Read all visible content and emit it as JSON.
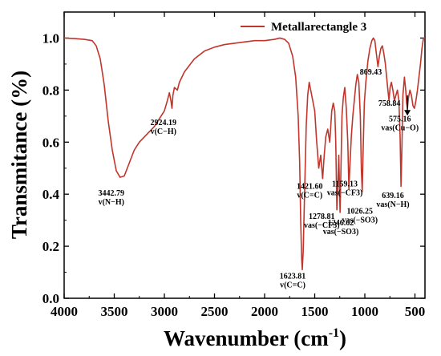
{
  "chart_data": {
    "type": "line",
    "title": "",
    "xlabel": "Wavenumber (cm",
    "xlabel_sup": "-1",
    "xlabel_tail": ")",
    "ylabel": "Transmitance (%)",
    "xlim": [
      4000,
      400
    ],
    "x_reversed": true,
    "ylim": [
      0.0,
      1.1
    ],
    "x_ticks": [
      {
        "value": 4000,
        "label": "4000"
      },
      {
        "value": 3500,
        "label": "3500"
      },
      {
        "value": 3000,
        "label": "3000"
      },
      {
        "value": 2500,
        "label": "2500"
      },
      {
        "value": 2000,
        "label": "2000"
      },
      {
        "value": 1500,
        "label": "1500"
      },
      {
        "value": 1000,
        "label": "1000"
      },
      {
        "value": 500,
        "label": "500"
      }
    ],
    "y_ticks": [
      {
        "value": 0.0,
        "label": "0.0"
      },
      {
        "value": 0.2,
        "label": "0.2"
      },
      {
        "value": 0.4,
        "label": "0.4"
      },
      {
        "value": 0.6,
        "label": "0.6"
      },
      {
        "value": 0.8,
        "label": "0.8"
      },
      {
        "value": 1.0,
        "label": "1.0"
      }
    ],
    "grid": false,
    "legend_position": "top-right",
    "series": [
      {
        "name": "Metallarectangle 3",
        "color": "#c0362c",
        "points": [
          [
            4000,
            1.0
          ],
          [
            3900,
            0.998
          ],
          [
            3800,
            0.995
          ],
          [
            3720,
            0.99
          ],
          [
            3680,
            0.97
          ],
          [
            3640,
            0.92
          ],
          [
            3600,
            0.82
          ],
          [
            3560,
            0.68
          ],
          [
            3520,
            0.57
          ],
          [
            3480,
            0.49
          ],
          [
            3442,
            0.465
          ],
          [
            3400,
            0.47
          ],
          [
            3350,
            0.52
          ],
          [
            3300,
            0.57
          ],
          [
            3250,
            0.6
          ],
          [
            3200,
            0.62
          ],
          [
            3150,
            0.64
          ],
          [
            3100,
            0.66
          ],
          [
            3050,
            0.69
          ],
          [
            3000,
            0.72
          ],
          [
            2970,
            0.76
          ],
          [
            2950,
            0.79
          ],
          [
            2935,
            0.76
          ],
          [
            2924,
            0.73
          ],
          [
            2915,
            0.78
          ],
          [
            2900,
            0.81
          ],
          [
            2870,
            0.8
          ],
          [
            2850,
            0.83
          ],
          [
            2800,
            0.87
          ],
          [
            2700,
            0.92
          ],
          [
            2600,
            0.95
          ],
          [
            2500,
            0.965
          ],
          [
            2400,
            0.975
          ],
          [
            2300,
            0.98
          ],
          [
            2200,
            0.985
          ],
          [
            2100,
            0.99
          ],
          [
            2000,
            0.99
          ],
          [
            1900,
            0.995
          ],
          [
            1850,
            1.0
          ],
          [
            1800,
            0.995
          ],
          [
            1760,
            0.98
          ],
          [
            1720,
            0.93
          ],
          [
            1690,
            0.85
          ],
          [
            1665,
            0.7
          ],
          [
            1650,
            0.52
          ],
          [
            1640,
            0.3
          ],
          [
            1630,
            0.15
          ],
          [
            1624,
            0.11
          ],
          [
            1615,
            0.18
          ],
          [
            1600,
            0.42
          ],
          [
            1585,
            0.66
          ],
          [
            1570,
            0.78
          ],
          [
            1555,
            0.83
          ],
          [
            1540,
            0.8
          ],
          [
            1520,
            0.76
          ],
          [
            1500,
            0.72
          ],
          [
            1480,
            0.6
          ],
          [
            1460,
            0.5
          ],
          [
            1440,
            0.55
          ],
          [
            1421,
            0.46
          ],
          [
            1405,
            0.55
          ],
          [
            1390,
            0.62
          ],
          [
            1370,
            0.65
          ],
          [
            1350,
            0.6
          ],
          [
            1330,
            0.72
          ],
          [
            1315,
            0.75
          ],
          [
            1300,
            0.72
          ],
          [
            1290,
            0.6
          ],
          [
            1279,
            0.34
          ],
          [
            1270,
            0.42
          ],
          [
            1260,
            0.55
          ],
          [
            1247,
            0.33
          ],
          [
            1238,
            0.5
          ],
          [
            1228,
            0.7
          ],
          [
            1215,
            0.77
          ],
          [
            1200,
            0.81
          ],
          [
            1185,
            0.73
          ],
          [
            1170,
            0.6
          ],
          [
            1159,
            0.42
          ],
          [
            1150,
            0.5
          ],
          [
            1135,
            0.62
          ],
          [
            1120,
            0.7
          ],
          [
            1105,
            0.76
          ],
          [
            1090,
            0.82
          ],
          [
            1075,
            0.86
          ],
          [
            1060,
            0.83
          ],
          [
            1045,
            0.7
          ],
          [
            1035,
            0.5
          ],
          [
            1026,
            0.41
          ],
          [
            1018,
            0.55
          ],
          [
            1005,
            0.75
          ],
          [
            990,
            0.83
          ],
          [
            970,
            0.91
          ],
          [
            950,
            0.96
          ],
          [
            930,
            0.99
          ],
          [
            915,
            1.0
          ],
          [
            900,
            0.99
          ],
          [
            885,
            0.94
          ],
          [
            869,
            0.89
          ],
          [
            855,
            0.93
          ],
          [
            840,
            0.96
          ],
          [
            825,
            0.97
          ],
          [
            810,
            0.94
          ],
          [
            795,
            0.9
          ],
          [
            780,
            0.84
          ],
          [
            770,
            0.8
          ],
          [
            759,
            0.76
          ],
          [
            748,
            0.81
          ],
          [
            735,
            0.83
          ],
          [
            720,
            0.8
          ],
          [
            705,
            0.76
          ],
          [
            690,
            0.78
          ],
          [
            675,
            0.8
          ],
          [
            660,
            0.76
          ],
          [
            648,
            0.62
          ],
          [
            639,
            0.43
          ],
          [
            630,
            0.58
          ],
          [
            620,
            0.78
          ],
          [
            605,
            0.85
          ],
          [
            592,
            0.8
          ],
          [
            583,
            0.75
          ],
          [
            575,
            0.73
          ],
          [
            565,
            0.77
          ],
          [
            550,
            0.8
          ],
          [
            535,
            0.78
          ],
          [
            520,
            0.74
          ],
          [
            505,
            0.73
          ],
          [
            490,
            0.76
          ],
          [
            475,
            0.8
          ],
          [
            460,
            0.85
          ],
          [
            445,
            0.9
          ],
          [
            430,
            0.96
          ],
          [
            415,
            1.0
          ],
          [
            400,
            1.0
          ]
        ]
      }
    ],
    "annotations": [
      {
        "x": 3442.79,
        "y": 0.465,
        "lines": [
          "3442.79",
          "v(N−H)"
        ],
        "anchor_x": 3530,
        "anchor_y": 0.395
      },
      {
        "x": 2924.19,
        "y": 0.73,
        "lines": [
          "2924.19",
          "v(C−H)"
        ],
        "anchor_x": 3010,
        "anchor_y": 0.665
      },
      {
        "x": 1623.81,
        "y": 0.11,
        "lines": [
          "1623.81",
          "v(C=C)"
        ],
        "anchor_x": 1720,
        "anchor_y": 0.075
      },
      {
        "x": 1421.6,
        "y": 0.46,
        "lines": [
          "1421.60",
          "v(C=C)"
        ],
        "anchor_x": 1550,
        "anchor_y": 0.42
      },
      {
        "x": 1278.81,
        "y": 0.34,
        "lines": [
          "1278.81",
          "vas(−CF3)"
        ],
        "anchor_x": 1430,
        "anchor_y": 0.305
      },
      {
        "x": 1246.62,
        "y": 0.33,
        "lines": [
          "1246.62",
          "vas(−SO3)"
        ],
        "anchor_x": 1240,
        "anchor_y": 0.28
      },
      {
        "x": 1159.13,
        "y": 0.42,
        "lines": [
          "1159.13",
          "vas(−CF3)"
        ],
        "anchor_x": 1200,
        "anchor_y": 0.43
      },
      {
        "x": 1026.25,
        "y": 0.41,
        "lines": [
          "1026.25",
          "vas(−SO3)"
        ],
        "anchor_x": 1050,
        "anchor_y": 0.325
      },
      {
        "x": 869.43,
        "y": 0.89,
        "lines": [
          "869.43"
        ],
        "anchor_x": 940,
        "anchor_y": 0.86
      },
      {
        "x": 758.84,
        "y": 0.76,
        "lines": [
          "758.84"
        ],
        "anchor_x": 755,
        "anchor_y": 0.74
      },
      {
        "x": 639.16,
        "y": 0.43,
        "lines": [
          "639.16",
          "vas(N−H)"
        ],
        "anchor_x": 720,
        "anchor_y": 0.385
      },
      {
        "x": 575.16,
        "y": 0.73,
        "lines": [
          "575.16",
          "vas(Cu−O)"
        ],
        "anchor_x": 650,
        "anchor_y": 0.68
      }
    ]
  }
}
